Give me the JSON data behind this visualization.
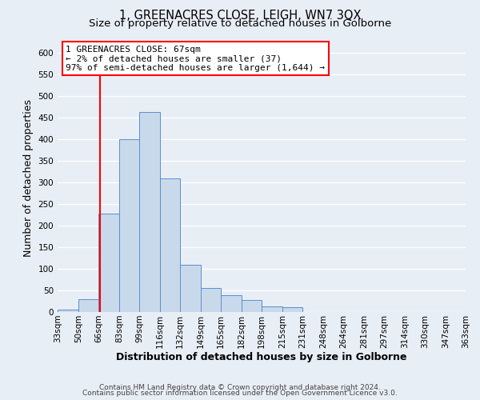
{
  "title": "1, GREENACRES CLOSE, LEIGH, WN7 3QX",
  "subtitle": "Size of property relative to detached houses in Golborne",
  "xlabel": "Distribution of detached houses by size in Golborne",
  "ylabel": "Number of detached properties",
  "bin_labels": [
    "33sqm",
    "50sqm",
    "66sqm",
    "83sqm",
    "99sqm",
    "116sqm",
    "132sqm",
    "149sqm",
    "165sqm",
    "182sqm",
    "198sqm",
    "215sqm",
    "231sqm",
    "248sqm",
    "264sqm",
    "281sqm",
    "297sqm",
    "314sqm",
    "330sqm",
    "347sqm",
    "363sqm"
  ],
  "bin_edges": [
    33,
    50,
    66,
    83,
    99,
    116,
    132,
    149,
    165,
    182,
    198,
    215,
    231,
    248,
    264,
    281,
    297,
    314,
    330,
    347,
    363
  ],
  "bar_heights": [
    5,
    30,
    228,
    400,
    463,
    310,
    109,
    55,
    38,
    28,
    13,
    11,
    0,
    0,
    0,
    0,
    0,
    0,
    0,
    0
  ],
  "bar_color": "#c9d9ec",
  "bar_edge_color": "#5b8fc9",
  "vline_x": 67,
  "vline_color": "red",
  "annotation_line1": "1 GREENACRES CLOSE: 67sqm",
  "annotation_line2": "← 2% of detached houses are smaller (37)",
  "annotation_line3": "97% of semi-detached houses are larger (1,644) →",
  "annotation_box_color": "red",
  "ylim": [
    0,
    620
  ],
  "yticks": [
    0,
    50,
    100,
    150,
    200,
    250,
    300,
    350,
    400,
    450,
    500,
    550,
    600
  ],
  "footer_line1": "Contains HM Land Registry data © Crown copyright and database right 2024.",
  "footer_line2": "Contains public sector information licensed under the Open Government Licence v3.0.",
  "fig_bg_color": "#e8eef6",
  "plot_bg_color": "#e8eef6",
  "grid_color": "#ffffff",
  "title_fontsize": 10.5,
  "subtitle_fontsize": 9.5,
  "axis_label_fontsize": 9,
  "tick_fontsize": 7.5,
  "annotation_fontsize": 8,
  "footer_fontsize": 6.5
}
